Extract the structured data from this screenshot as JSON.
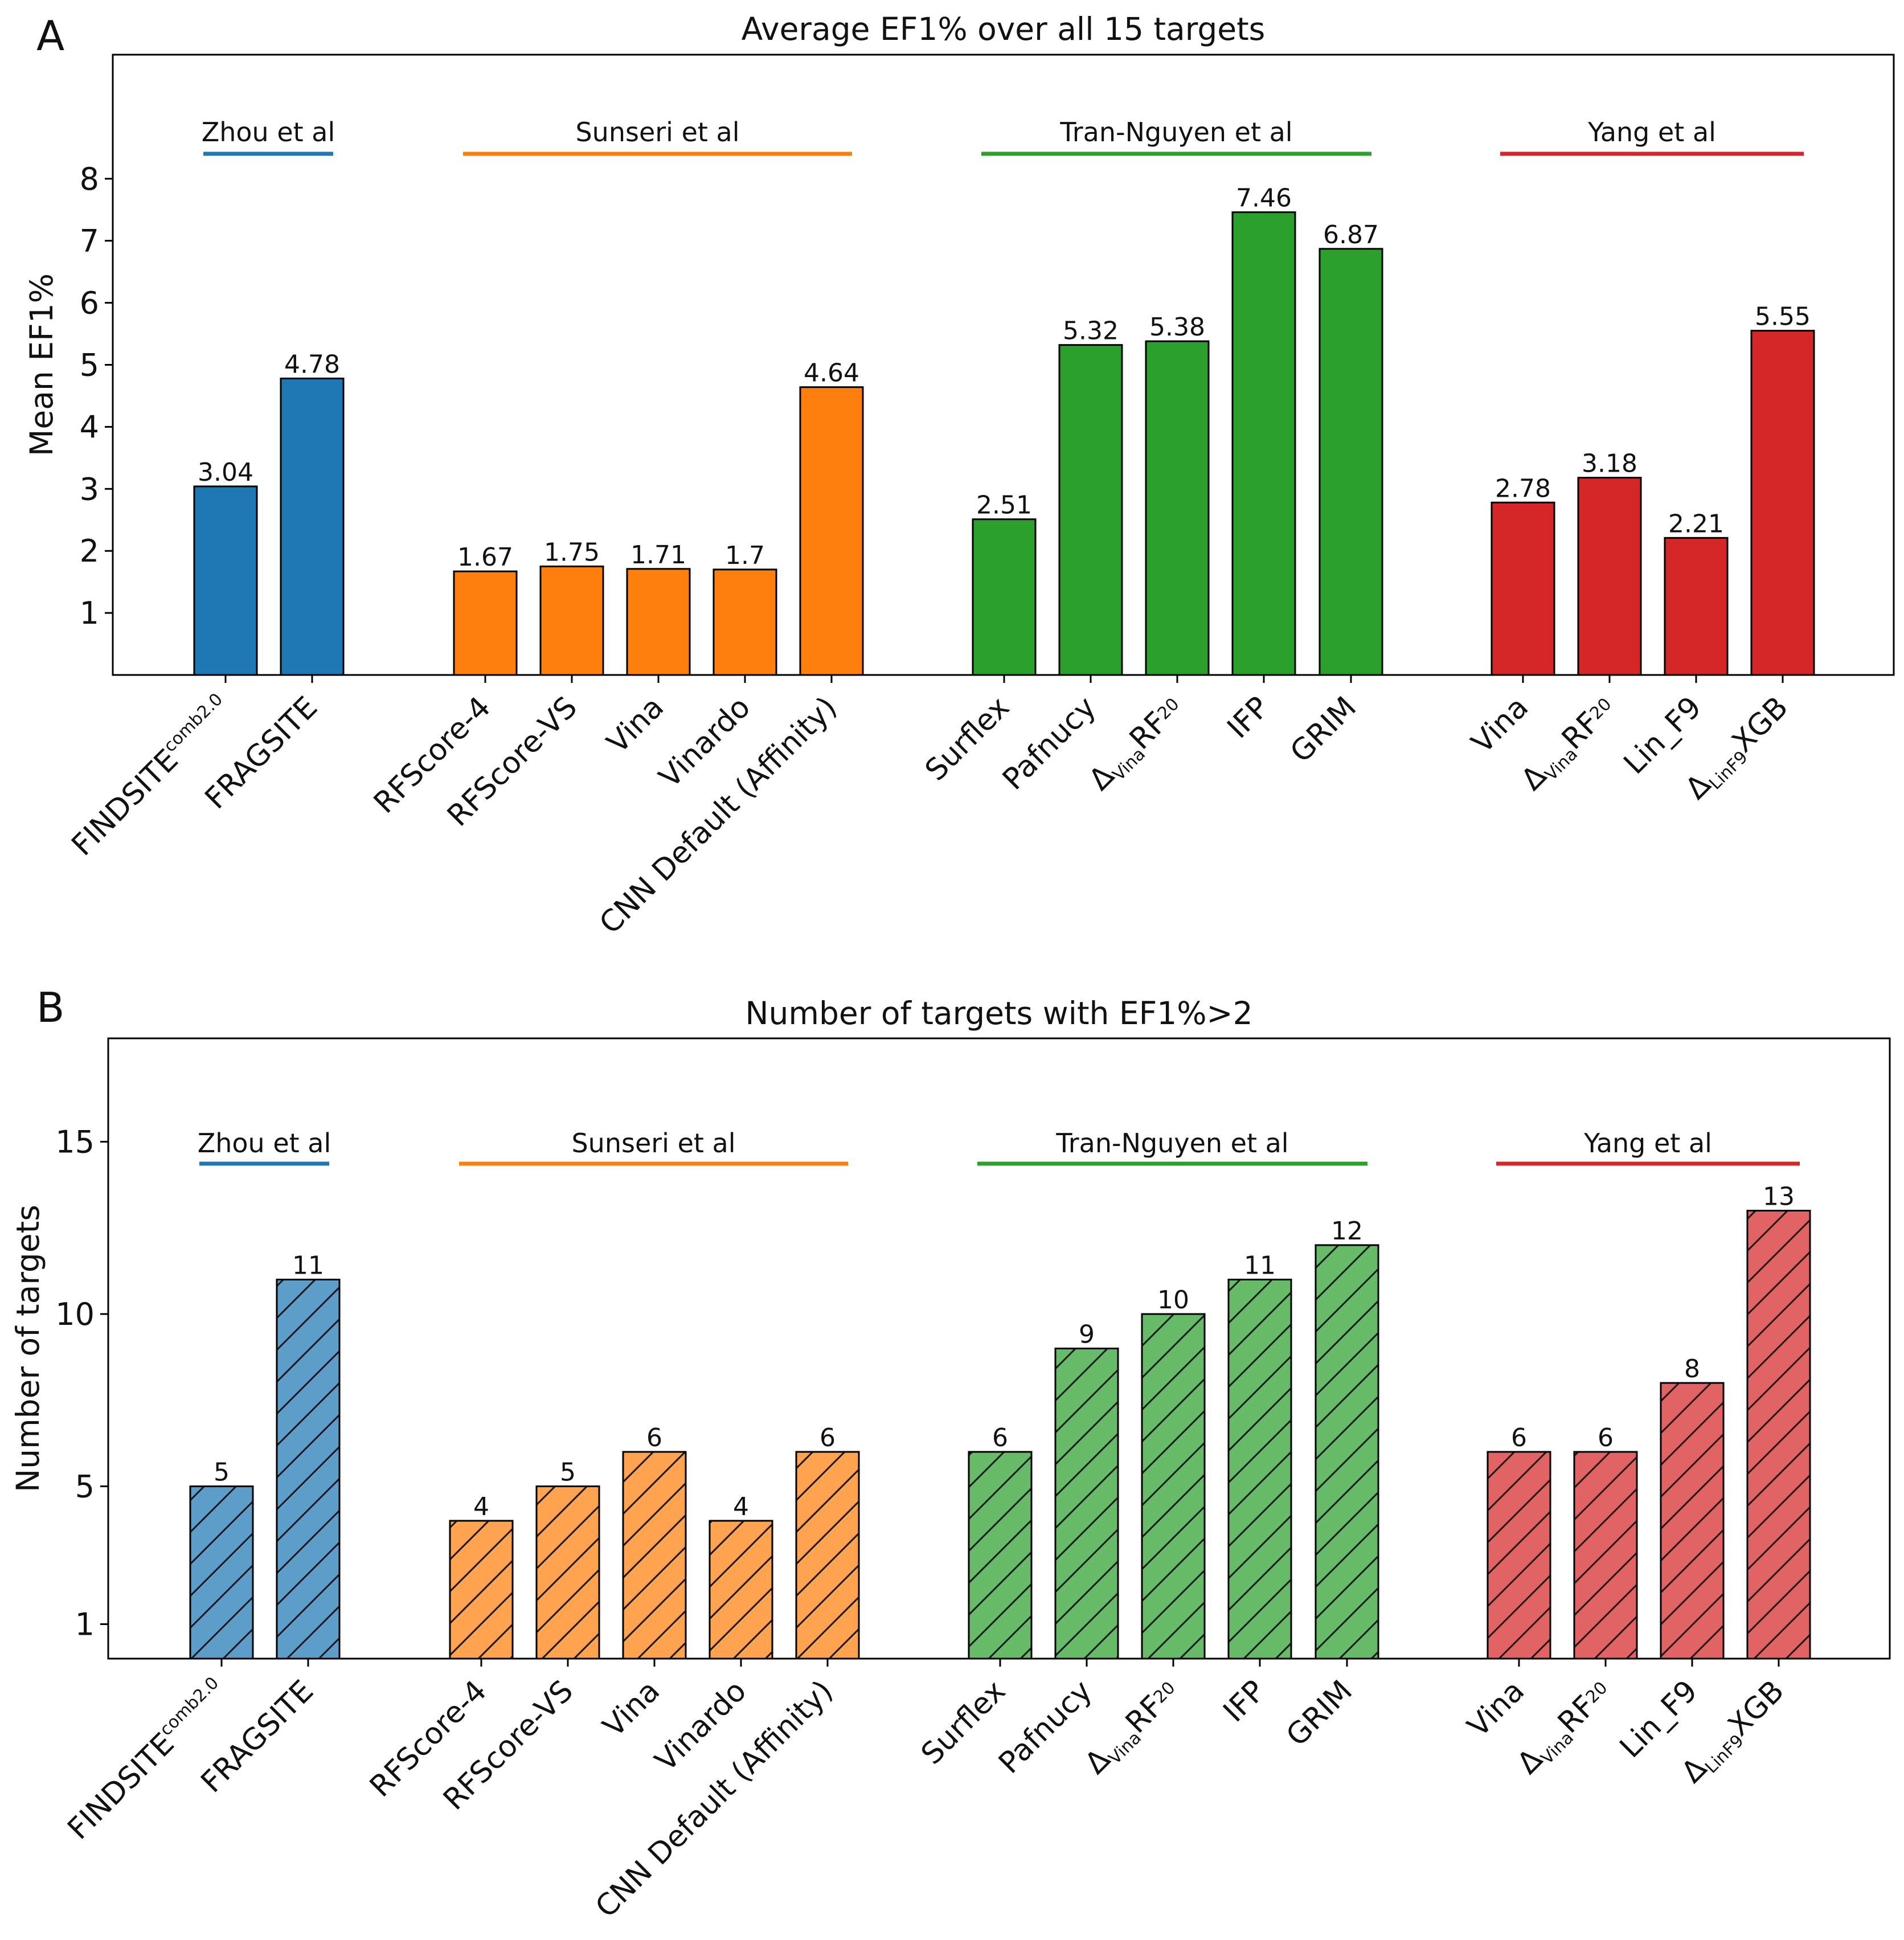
{
  "chart_data": [
    {
      "panel": "A",
      "type": "bar",
      "title": "Average EF1% over all 15 targets",
      "xlabel": "",
      "ylabel": "Mean EF1%",
      "ylim": [
        0,
        10
      ],
      "yticks": [
        1,
        2,
        3,
        4,
        5,
        6,
        7,
        8
      ],
      "hatched": false,
      "groups": [
        {
          "name": "Zhou et al",
          "color": "#1f77b4",
          "categories": [
            "FINDSITE^comb2.0",
            "FRAGSITE"
          ],
          "values": [
            3.04,
            4.78
          ],
          "labels": [
            "3.04",
            "4.78"
          ]
        },
        {
          "name": "Sunseri et al",
          "color": "#ff7f0e",
          "categories": [
            "RFScore-4",
            "RFScore-VS",
            "Vina",
            "Vinardo",
            "CNN Default (Affinity)"
          ],
          "values": [
            1.67,
            1.75,
            1.71,
            1.7,
            4.64
          ],
          "labels": [
            "1.67",
            "1.75",
            "1.71",
            "1.7",
            "4.64"
          ]
        },
        {
          "name": "Tran-Nguyen et al",
          "color": "#2ca02c",
          "categories": [
            "Surflex",
            "Pafnucy",
            "Δ_Vina RF_20",
            "IFP",
            "GRIM"
          ],
          "values": [
            2.51,
            5.32,
            5.38,
            7.46,
            6.87
          ],
          "labels": [
            "2.51",
            "5.32",
            "5.38",
            "7.46",
            "6.87"
          ]
        },
        {
          "name": "Yang et al",
          "color": "#d62728",
          "categories": [
            "Vina",
            "Δ_Vina RF_20",
            "Lin_F9",
            "Δ_LinF9 XGB"
          ],
          "values": [
            2.78,
            3.18,
            2.21,
            5.55
          ],
          "labels": [
            "2.78",
            "3.18",
            "2.21",
            "5.55"
          ]
        }
      ]
    },
    {
      "panel": "B",
      "type": "bar",
      "title": "Number of targets with EF1%>2",
      "xlabel": "",
      "ylabel": "Number of targets",
      "ylim": [
        0,
        18
      ],
      "yticks": [
        1,
        5,
        10,
        15
      ],
      "hatched": true,
      "groups": [
        {
          "name": "Zhou et al",
          "color": "#1f77b4",
          "categories": [
            "FINDSITE^comb2.0",
            "FRAGSITE"
          ],
          "values": [
            5,
            11
          ],
          "labels": [
            "5",
            "11"
          ]
        },
        {
          "name": "Sunseri et al",
          "color": "#ff7f0e",
          "categories": [
            "RFScore-4",
            "RFScore-VS",
            "Vina",
            "Vinardo",
            "CNN Default (Affinity)"
          ],
          "values": [
            4,
            5,
            6,
            4,
            6
          ],
          "labels": [
            "4",
            "5",
            "6",
            "4",
            "6"
          ]
        },
        {
          "name": "Tran-Nguyen et al",
          "color": "#2ca02c",
          "categories": [
            "Surflex",
            "Pafnucy",
            "Δ_Vina RF_20",
            "IFP",
            "GRIM"
          ],
          "values": [
            6,
            9,
            10,
            11,
            12
          ],
          "labels": [
            "6",
            "9",
            "10",
            "11",
            "12"
          ]
        },
        {
          "name": "Yang et al",
          "color": "#d62728",
          "categories": [
            "Vina",
            "Δ_Vina RF_20",
            "Lin_F9",
            "Δ_LinF9 XGB"
          ],
          "values": [
            6,
            6,
            8,
            13
          ],
          "labels": [
            "6",
            "6",
            "8",
            "13"
          ]
        }
      ]
    }
  ]
}
